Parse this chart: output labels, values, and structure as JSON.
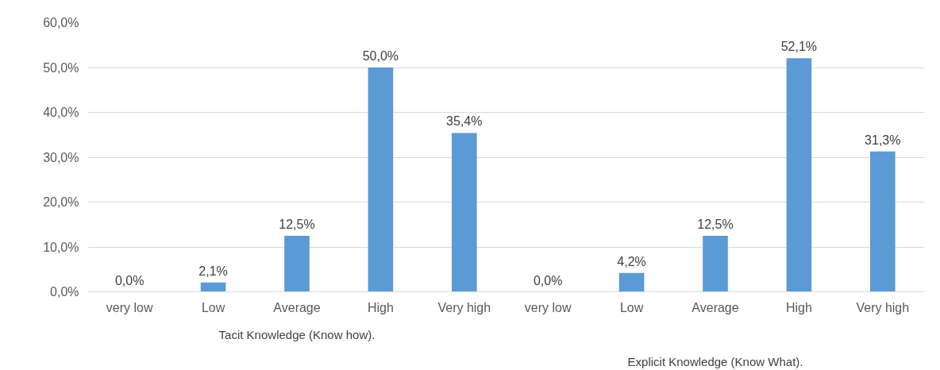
{
  "chart_data": {
    "type": "bar",
    "categories": [
      "very low",
      "Low",
      "Average",
      "High",
      "Very high",
      "very low",
      "Low",
      "Average",
      "High",
      "Very high"
    ],
    "values": [
      0,
      2.1,
      12.5,
      50,
      35.4,
      0,
      4.2,
      12.5,
      52.1,
      31.3
    ],
    "value_labels": [
      "0,0%",
      "2,1%",
      "12,5%",
      "50,0%",
      "35,4%",
      "0,0%",
      "4,2%",
      "12,5%",
      "52,1%",
      "31,3%"
    ],
    "color": "#5b9bd5",
    "ylim": [
      0,
      60
    ],
    "yticks": [
      {
        "value": 0,
        "label": "0,0%"
      },
      {
        "value": 10,
        "label": "10,0%"
      },
      {
        "value": 20,
        "label": "20,0%"
      },
      {
        "value": 30,
        "label": "30,0%"
      },
      {
        "value": 40,
        "label": "40,0%"
      },
      {
        "value": 50,
        "label": "50,0%"
      },
      {
        "value": 60,
        "label": "60,0%"
      }
    ],
    "grid": "y",
    "annotations": [
      "Tacit Knowledge (Know how).",
      "Explicit Knowledge (Know What)."
    ]
  }
}
